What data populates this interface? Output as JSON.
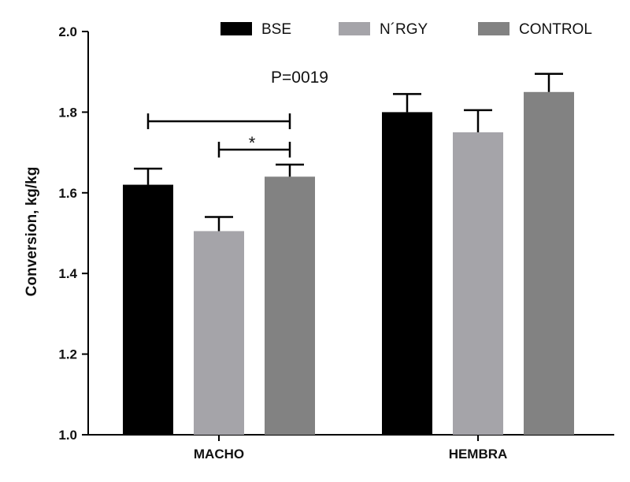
{
  "chart_data": {
    "type": "bar",
    "categories": [
      "MACHO",
      "HEMBRA"
    ],
    "series": [
      {
        "name": "BSE",
        "color": "#000000",
        "values": [
          1.62,
          1.8
        ],
        "errors": [
          0.04,
          0.045
        ]
      },
      {
        "name": "N´RGY",
        "color": "#a5a4a9",
        "values": [
          1.505,
          1.75
        ],
        "errors": [
          0.035,
          0.055
        ]
      },
      {
        "name": "CONTROL",
        "color": "#828282",
        "values": [
          1.64,
          1.85
        ],
        "errors": [
          0.03,
          0.045
        ]
      }
    ],
    "ylabel": "Conversion, kg/kg",
    "xlabel": "",
    "ylim": [
      1.0,
      2.0
    ],
    "yticks": [
      "1.0",
      "1.2",
      "1.4",
      "1.6",
      "1.8",
      "2.0"
    ],
    "legend_position": "top",
    "grid": false,
    "annotations": {
      "p_value": "P=0019",
      "significance": "*"
    }
  }
}
